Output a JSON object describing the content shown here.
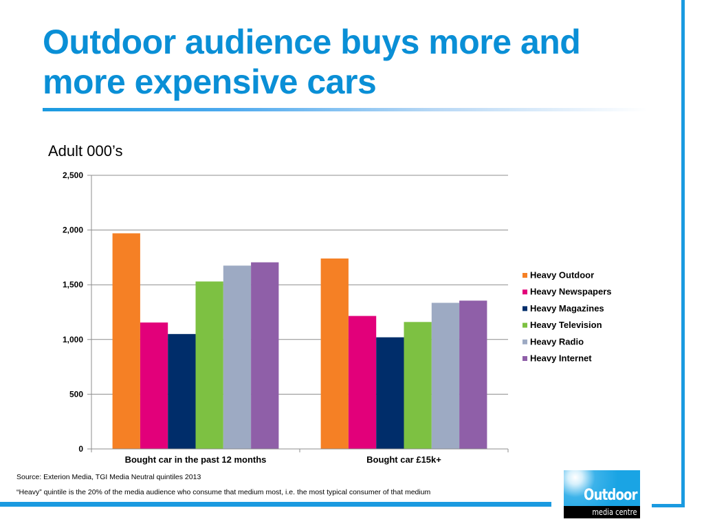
{
  "slide": {
    "title": "Outdoor audience buys more and more expensive cars",
    "subtitle": "Adult 000’s",
    "footnotes": [
      "Source: Exterion Media, TGI Media Neutral quintiles 2013",
      "“Heavy” quintile is the 20% of the media audience who consume that medium most, i.e. the most typical consumer of that medium"
    ],
    "logo": {
      "word": "Outdoor",
      "sub": "media centre"
    }
  },
  "chart_data": {
    "type": "bar",
    "title": "",
    "xlabel": "",
    "ylabel": "Adult 000’s",
    "ylim": [
      0,
      2500
    ],
    "yticks": [
      0,
      500,
      1000,
      1500,
      2000,
      2500
    ],
    "ytick_labels": [
      "0",
      "500",
      "1,000",
      "1,500",
      "2,000",
      "2,500"
    ],
    "grid": true,
    "legend_position": "right",
    "categories": [
      "Bought car in the past 12 months",
      "Bought car £15k+"
    ],
    "series": [
      {
        "name": "Heavy Outdoor",
        "color": "#f58025",
        "values": [
          1970,
          1740
        ]
      },
      {
        "name": "Heavy Newspapers",
        "color": "#e2007a",
        "values": [
          1155,
          1215
        ]
      },
      {
        "name": "Heavy Magazines",
        "color": "#002d6a",
        "values": [
          1050,
          1020
        ]
      },
      {
        "name": "Heavy Television",
        "color": "#7dc142",
        "values": [
          1530,
          1160
        ]
      },
      {
        "name": "Heavy Radio",
        "color": "#9daac3",
        "values": [
          1675,
          1335
        ]
      },
      {
        "name": "Heavy Internet",
        "color": "#8f5fa8",
        "values": [
          1705,
          1355
        ]
      }
    ]
  }
}
